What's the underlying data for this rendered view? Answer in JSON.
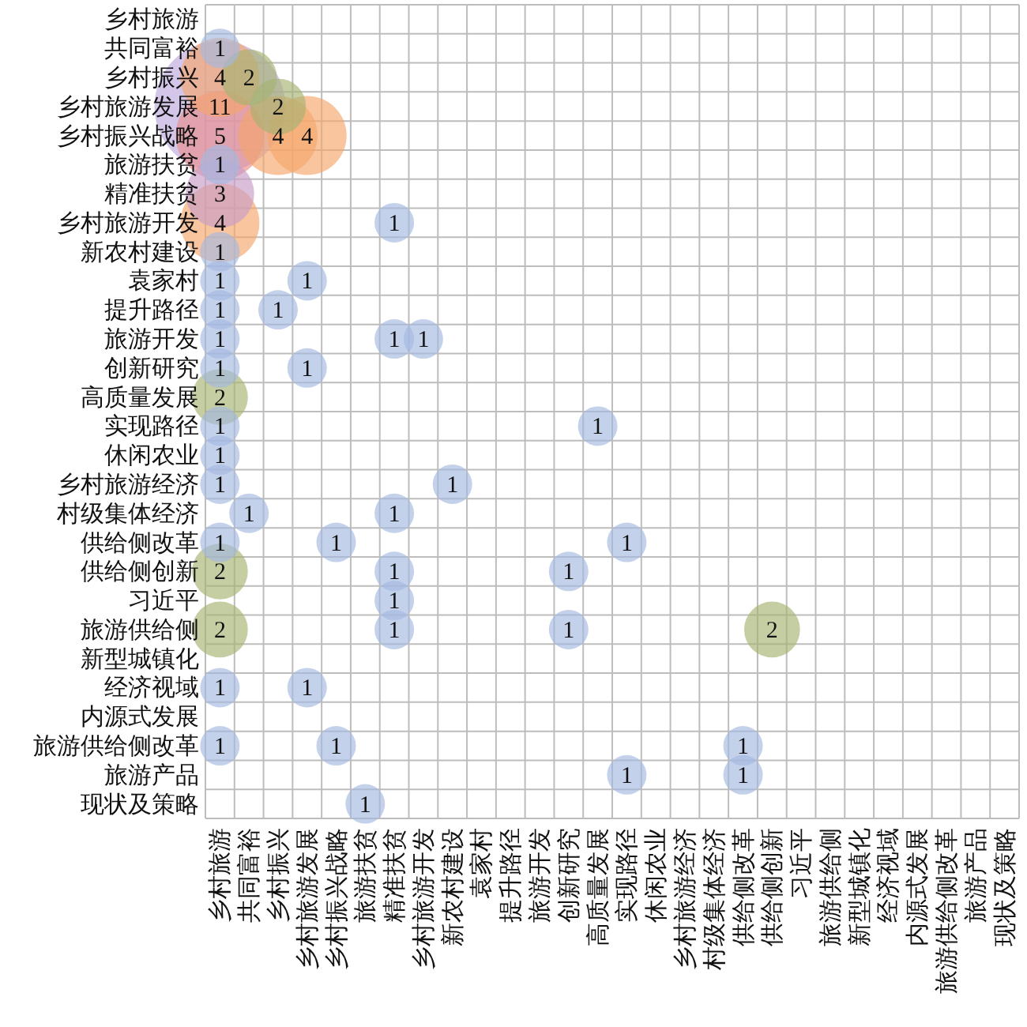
{
  "chart_data": {
    "type": "heatmap",
    "grid": true,
    "data_labels": true,
    "categories": [
      "乡村旅游",
      "共同富裕",
      "乡村振兴",
      "乡村旅游发展",
      "乡村振兴战略",
      "旅游扶贫",
      "精准扶贫",
      "乡村旅游开发",
      "新农村建设",
      "袁家村",
      "提升路径",
      "旅游开发",
      "创新研究",
      "高质量发展",
      "实现路径",
      "休闲农业",
      "乡村旅游经济",
      "村级集体经济",
      "供给侧改革",
      "供给侧创新",
      "习近平",
      "旅游供给侧",
      "新型城镇化",
      "经济视域",
      "内源式发展",
      "旅游供给侧改革",
      "旅游产品",
      "现状及策略"
    ],
    "y_categories": [
      "乡村旅游",
      "共同富裕",
      "乡村振兴",
      "乡村旅游发展",
      "乡村振兴战略",
      "旅游扶贫",
      "精准扶贫",
      "乡村旅游开发",
      "新农村建设",
      "袁家村",
      "提升路径",
      "旅游开发",
      "创新研究",
      "高质量发展",
      "实现路径",
      "休闲农业",
      "乡村旅游经济",
      "村级集体经济",
      "供给侧改革",
      "供给侧创新",
      "习近平",
      "旅游供给侧",
      "新型城镇化",
      "经济视域",
      "内源式发展",
      "旅游供给侧改革",
      "旅游产品",
      "现状及策略"
    ],
    "cells": [
      [
        null,
        null,
        null,
        null,
        null,
        null,
        null,
        null,
        null,
        null,
        null,
        null,
        null,
        null,
        null,
        null,
        null,
        null,
        null,
        null,
        null,
        null,
        null,
        null,
        null,
        null,
        null,
        null
      ],
      [
        1,
        null,
        null,
        null,
        null,
        null,
        null,
        null,
        null,
        null,
        null,
        null,
        null,
        null,
        null,
        null,
        null,
        null,
        null,
        null,
        null,
        null,
        null,
        null,
        null,
        null,
        null,
        null
      ],
      [
        4,
        2,
        null,
        null,
        null,
        null,
        null,
        null,
        null,
        null,
        null,
        null,
        null,
        null,
        null,
        null,
        null,
        null,
        null,
        null,
        null,
        null,
        null,
        null,
        null,
        null,
        null,
        null
      ],
      [
        11,
        null,
        2,
        null,
        null,
        null,
        null,
        null,
        null,
        null,
        null,
        null,
        null,
        null,
        null,
        null,
        null,
        null,
        null,
        null,
        null,
        null,
        null,
        null,
        null,
        null,
        null,
        null
      ],
      [
        5,
        null,
        4,
        4,
        null,
        null,
        null,
        null,
        null,
        null,
        null,
        null,
        null,
        null,
        null,
        null,
        null,
        null,
        null,
        null,
        null,
        null,
        null,
        null,
        null,
        null,
        null,
        null
      ],
      [
        1,
        null,
        null,
        null,
        null,
        null,
        null,
        null,
        null,
        null,
        null,
        null,
        null,
        null,
        null,
        null,
        null,
        null,
        null,
        null,
        null,
        null,
        null,
        null,
        null,
        null,
        null,
        null
      ],
      [
        3,
        null,
        null,
        null,
        null,
        null,
        null,
        null,
        null,
        null,
        null,
        null,
        null,
        null,
        null,
        null,
        null,
        null,
        null,
        null,
        null,
        null,
        null,
        null,
        null,
        null,
        null,
        null
      ],
      [
        4,
        null,
        null,
        null,
        null,
        null,
        1,
        null,
        null,
        null,
        null,
        null,
        null,
        null,
        null,
        null,
        null,
        null,
        null,
        null,
        null,
        null,
        null,
        null,
        null,
        null,
        null,
        null
      ],
      [
        1,
        null,
        null,
        null,
        null,
        null,
        null,
        null,
        null,
        null,
        null,
        null,
        null,
        null,
        null,
        null,
        null,
        null,
        null,
        null,
        null,
        null,
        null,
        null,
        null,
        null,
        null,
        null
      ],
      [
        1,
        null,
        null,
        1,
        null,
        null,
        null,
        null,
        null,
        null,
        null,
        null,
        null,
        null,
        null,
        null,
        null,
        null,
        null,
        null,
        null,
        null,
        null,
        null,
        null,
        null,
        null,
        null
      ],
      [
        1,
        null,
        1,
        null,
        null,
        null,
        null,
        null,
        null,
        null,
        null,
        null,
        null,
        null,
        null,
        null,
        null,
        null,
        null,
        null,
        null,
        null,
        null,
        null,
        null,
        null,
        null,
        null
      ],
      [
        1,
        null,
        null,
        null,
        null,
        null,
        1,
        1,
        null,
        null,
        null,
        null,
        null,
        null,
        null,
        null,
        null,
        null,
        null,
        null,
        null,
        null,
        null,
        null,
        null,
        null,
        null,
        null
      ],
      [
        1,
        null,
        null,
        1,
        null,
        null,
        null,
        null,
        null,
        null,
        null,
        null,
        null,
        null,
        null,
        null,
        null,
        null,
        null,
        null,
        null,
        null,
        null,
        null,
        null,
        null,
        null,
        null
      ],
      [
        2,
        null,
        null,
        null,
        null,
        null,
        null,
        null,
        null,
        null,
        null,
        null,
        null,
        null,
        null,
        null,
        null,
        null,
        null,
        null,
        null,
        null,
        null,
        null,
        null,
        null,
        null,
        null
      ],
      [
        1,
        null,
        null,
        null,
        null,
        null,
        null,
        null,
        null,
        null,
        null,
        null,
        null,
        1,
        null,
        null,
        null,
        null,
        null,
        null,
        null,
        null,
        null,
        null,
        null,
        null,
        null,
        null
      ],
      [
        1,
        null,
        null,
        null,
        null,
        null,
        null,
        null,
        null,
        null,
        null,
        null,
        null,
        null,
        null,
        null,
        null,
        null,
        null,
        null,
        null,
        null,
        null,
        null,
        null,
        null,
        null,
        null
      ],
      [
        1,
        null,
        null,
        null,
        null,
        null,
        null,
        null,
        1,
        null,
        null,
        null,
        null,
        null,
        null,
        null,
        null,
        null,
        null,
        null,
        null,
        null,
        null,
        null,
        null,
        null,
        null,
        null
      ],
      [
        null,
        1,
        null,
        null,
        null,
        null,
        1,
        null,
        null,
        null,
        null,
        null,
        null,
        null,
        null,
        null,
        null,
        null,
        null,
        null,
        null,
        null,
        null,
        null,
        null,
        null,
        null,
        null
      ],
      [
        1,
        null,
        null,
        null,
        1,
        null,
        null,
        null,
        null,
        null,
        null,
        null,
        null,
        null,
        1,
        null,
        null,
        null,
        null,
        null,
        null,
        null,
        null,
        null,
        null,
        null,
        null,
        null
      ],
      [
        2,
        null,
        null,
        null,
        null,
        null,
        1,
        null,
        null,
        null,
        null,
        null,
        1,
        null,
        null,
        null,
        null,
        null,
        null,
        null,
        null,
        null,
        null,
        null,
        null,
        null,
        null,
        null
      ],
      [
        null,
        null,
        null,
        null,
        null,
        null,
        1,
        null,
        null,
        null,
        null,
        null,
        null,
        null,
        null,
        null,
        null,
        null,
        null,
        null,
        null,
        null,
        null,
        null,
        null,
        null,
        null,
        null
      ],
      [
        2,
        null,
        null,
        null,
        null,
        null,
        1,
        null,
        null,
        null,
        null,
        null,
        1,
        null,
        null,
        null,
        null,
        null,
        null,
        2,
        null,
        null,
        null,
        null,
        null,
        null,
        null,
        null
      ],
      [
        null,
        null,
        null,
        null,
        null,
        null,
        null,
        null,
        null,
        null,
        null,
        null,
        null,
        null,
        null,
        null,
        null,
        null,
        null,
        null,
        null,
        null,
        null,
        null,
        null,
        null,
        null,
        null
      ],
      [
        1,
        null,
        null,
        1,
        null,
        null,
        null,
        null,
        null,
        null,
        null,
        null,
        null,
        null,
        null,
        null,
        null,
        null,
        null,
        null,
        null,
        null,
        null,
        null,
        null,
        null,
        null,
        null
      ],
      [
        null,
        null,
        null,
        null,
        null,
        null,
        null,
        null,
        null,
        null,
        null,
        null,
        null,
        null,
        null,
        null,
        null,
        null,
        null,
        null,
        null,
        null,
        null,
        null,
        null,
        null,
        null,
        null
      ],
      [
        1,
        null,
        null,
        null,
        1,
        null,
        null,
        null,
        null,
        null,
        null,
        null,
        null,
        null,
        null,
        null,
        null,
        null,
        1,
        null,
        null,
        null,
        null,
        null,
        null,
        null,
        null,
        null
      ],
      [
        null,
        null,
        null,
        null,
        null,
        null,
        null,
        null,
        null,
        null,
        null,
        null,
        null,
        null,
        1,
        null,
        null,
        null,
        1,
        null,
        null,
        null,
        null,
        null,
        null,
        null,
        null,
        null
      ],
      [
        null,
        null,
        null,
        null,
        null,
        1,
        null,
        null,
        null,
        null,
        null,
        null,
        null,
        null,
        null,
        null,
        null,
        null,
        null,
        null,
        null,
        null,
        null,
        null,
        null,
        null,
        null,
        null
      ]
    ]
  }
}
